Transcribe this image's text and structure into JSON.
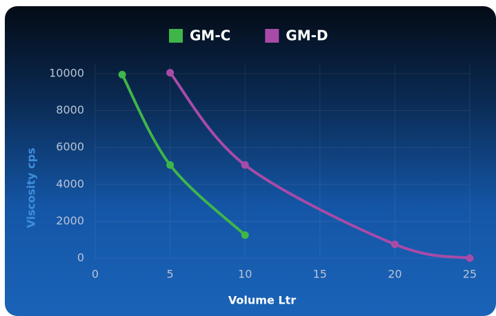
{
  "chart_data": {
    "type": "line",
    "x_label": "Volume Ltr",
    "y_label": "Viscosity cps",
    "xlim": [
      0,
      25
    ],
    "xticks": [
      0,
      5,
      10,
      15,
      20,
      25
    ],
    "ylim": [
      0,
      10000
    ],
    "yticks": [
      0,
      2000,
      4000,
      6000,
      8000,
      10000
    ],
    "grid": true,
    "legend": "top",
    "series": [
      {
        "name": "GM-C",
        "color": "#3fb54a",
        "x": [
          1.8,
          5,
          10
        ],
        "values": [
          9950,
          5050,
          1250
        ]
      },
      {
        "name": "GM-D",
        "color": "#a84ba8",
        "x": [
          5,
          10,
          20,
          25
        ],
        "values": [
          10050,
          5050,
          750,
          0
        ]
      }
    ]
  }
}
